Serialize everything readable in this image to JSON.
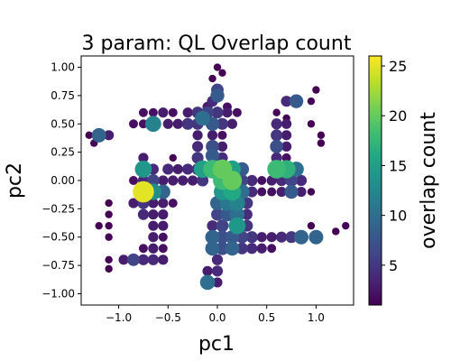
{
  "chart_data": {
    "type": "scatter",
    "title": "3 param: QL Overlap count",
    "xlabel": "pc1",
    "ylabel": "pc2",
    "xlim": [
      -1.38,
      1.38
    ],
    "ylim": [
      -1.1,
      1.1
    ],
    "xticks": [
      -1.0,
      -0.5,
      0.0,
      0.5,
      1.0
    ],
    "xtick_labels": [
      "−1.0",
      "−0.5",
      "0.0",
      "0.5",
      "1.0"
    ],
    "yticks": [
      -1.0,
      -0.75,
      -0.5,
      -0.25,
      0.0,
      0.25,
      0.5,
      0.75,
      1.0
    ],
    "ytick_labels": [
      "−1.00",
      "−0.75",
      "−0.50",
      "−0.25",
      "0.00",
      "0.25",
      "0.50",
      "0.75",
      "1.00"
    ],
    "grid": false,
    "colormap": "viridis",
    "colorbar": {
      "label": "overlap count",
      "min": 1,
      "max": 26,
      "ticks": [
        5,
        10,
        15,
        20,
        25
      ],
      "tick_labels": [
        "5",
        "10",
        "15",
        "20",
        "25"
      ]
    },
    "points": [
      {
        "x": 0.0,
        "y": 1.0,
        "c": 1
      },
      {
        "x": 0.05,
        "y": 0.95,
        "c": 1
      },
      {
        "x": -0.05,
        "y": 0.9,
        "c": 1
      },
      {
        "x": 0.0,
        "y": 0.8,
        "c": 6
      },
      {
        "x": -0.05,
        "y": 0.7,
        "c": 4
      },
      {
        "x": 0.0,
        "y": 0.75,
        "c": 8
      },
      {
        "x": -0.1,
        "y": 0.65,
        "c": 3
      },
      {
        "x": 0.1,
        "y": 0.65,
        "c": 2
      },
      {
        "x": -0.75,
        "y": 0.6,
        "c": 2
      },
      {
        "x": -0.65,
        "y": 0.6,
        "c": 2
      },
      {
        "x": -0.55,
        "y": 0.6,
        "c": 3
      },
      {
        "x": -0.45,
        "y": 0.6,
        "c": 2
      },
      {
        "x": -0.3,
        "y": 0.6,
        "c": 3
      },
      {
        "x": -0.2,
        "y": 0.6,
        "c": 5
      },
      {
        "x": -0.1,
        "y": 0.6,
        "c": 6
      },
      {
        "x": 0.0,
        "y": 0.6,
        "c": 5
      },
      {
        "x": 0.1,
        "y": 0.6,
        "c": 3
      },
      {
        "x": 0.2,
        "y": 0.6,
        "c": 2
      },
      {
        "x": 1.0,
        "y": 0.8,
        "c": 1
      },
      {
        "x": 0.95,
        "y": 0.7,
        "c": 1
      },
      {
        "x": 0.8,
        "y": 0.7,
        "c": 8
      },
      {
        "x": 0.7,
        "y": 0.7,
        "c": 4
      },
      {
        "x": 0.6,
        "y": 0.6,
        "c": 1
      },
      {
        "x": 0.7,
        "y": 0.55,
        "c": 1
      },
      {
        "x": -0.85,
        "y": 0.5,
        "c": 2
      },
      {
        "x": -0.75,
        "y": 0.5,
        "c": 2
      },
      {
        "x": -0.65,
        "y": 0.5,
        "c": 12
      },
      {
        "x": -0.5,
        "y": 0.5,
        "c": 3
      },
      {
        "x": -0.4,
        "y": 0.5,
        "c": 3
      },
      {
        "x": -0.3,
        "y": 0.5,
        "c": 5
      },
      {
        "x": -0.2,
        "y": 0.5,
        "c": 5
      },
      {
        "x": -0.15,
        "y": 0.55,
        "c": 10
      },
      {
        "x": -0.05,
        "y": 0.5,
        "c": 8
      },
      {
        "x": 0.05,
        "y": 0.5,
        "c": 5
      },
      {
        "x": 0.15,
        "y": 0.5,
        "c": 3
      },
      {
        "x": 0.6,
        "y": 0.5,
        "c": 4
      },
      {
        "x": 0.7,
        "y": 0.5,
        "c": 3
      },
      {
        "x": 0.95,
        "y": 0.5,
        "c": 1
      },
      {
        "x": -1.3,
        "y": 0.4,
        "c": 1
      },
      {
        "x": -1.2,
        "y": 0.4,
        "c": 9
      },
      {
        "x": -1.1,
        "y": 0.4,
        "c": 3
      },
      {
        "x": -0.2,
        "y": 0.4,
        "c": 3
      },
      {
        "x": -0.05,
        "y": 0.4,
        "c": 3
      },
      {
        "x": 0.05,
        "y": 0.4,
        "c": 2
      },
      {
        "x": 0.6,
        "y": 0.4,
        "c": 5
      },
      {
        "x": 0.7,
        "y": 0.4,
        "c": 3
      },
      {
        "x": 1.05,
        "y": 0.4,
        "c": 1
      },
      {
        "x": -1.25,
        "y": 0.33,
        "c": 1
      },
      {
        "x": -0.2,
        "y": 0.3,
        "c": 4
      },
      {
        "x": -0.05,
        "y": 0.3,
        "c": 7
      },
      {
        "x": 0.05,
        "y": 0.3,
        "c": 3
      },
      {
        "x": 0.6,
        "y": 0.3,
        "c": 7
      },
      {
        "x": 0.7,
        "y": 0.3,
        "c": 3
      },
      {
        "x": 1.05,
        "y": 0.33,
        "c": 1
      },
      {
        "x": -0.2,
        "y": 0.2,
        "c": 5
      },
      {
        "x": -0.05,
        "y": 0.22,
        "c": 8
      },
      {
        "x": 0.05,
        "y": 0.2,
        "c": 4
      },
      {
        "x": -0.75,
        "y": 0.2,
        "c": 3
      },
      {
        "x": -0.45,
        "y": 0.2,
        "c": 1
      },
      {
        "x": 0.6,
        "y": 0.2,
        "c": 4
      },
      {
        "x": 0.7,
        "y": 0.2,
        "c": 2
      },
      {
        "x": -0.75,
        "y": 0.1,
        "c": 14
      },
      {
        "x": -0.65,
        "y": 0.1,
        "c": 4
      },
      {
        "x": -0.5,
        "y": 0.1,
        "c": 4
      },
      {
        "x": -0.4,
        "y": 0.1,
        "c": 3
      },
      {
        "x": -0.3,
        "y": 0.1,
        "c": 4
      },
      {
        "x": -0.2,
        "y": 0.1,
        "c": 5
      },
      {
        "x": -0.15,
        "y": 0.1,
        "c": 15
      },
      {
        "x": -0.05,
        "y": 0.1,
        "c": 18
      },
      {
        "x": 0.05,
        "y": 0.1,
        "c": 20
      },
      {
        "x": 0.15,
        "y": 0.1,
        "c": 15
      },
      {
        "x": 0.25,
        "y": 0.1,
        "c": 8
      },
      {
        "x": 0.6,
        "y": 0.1,
        "c": 18
      },
      {
        "x": 0.7,
        "y": 0.1,
        "c": 17
      },
      {
        "x": 0.8,
        "y": 0.1,
        "c": 10
      },
      {
        "x": -0.85,
        "y": 0.0,
        "c": 2
      },
      {
        "x": -0.75,
        "y": 0.0,
        "c": 4
      },
      {
        "x": -0.65,
        "y": 0.0,
        "c": 6
      },
      {
        "x": -0.55,
        "y": 0.0,
        "c": 3
      },
      {
        "x": -0.45,
        "y": 0.0,
        "c": 3
      },
      {
        "x": -0.35,
        "y": 0.0,
        "c": 3
      },
      {
        "x": -0.25,
        "y": 0.0,
        "c": 3
      },
      {
        "x": -0.15,
        "y": 0.0,
        "c": 5
      },
      {
        "x": 0.05,
        "y": 0.0,
        "c": 18
      },
      {
        "x": 0.15,
        "y": 0.0,
        "c": 20
      },
      {
        "x": 0.25,
        "y": 0.0,
        "c": 6
      },
      {
        "x": 0.35,
        "y": 0.0,
        "c": 4
      },
      {
        "x": 0.45,
        "y": 0.0,
        "c": 2
      },
      {
        "x": 0.55,
        "y": 0.0,
        "c": 3
      },
      {
        "x": 0.65,
        "y": 0.0,
        "c": 4
      },
      {
        "x": 0.75,
        "y": 0.0,
        "c": 6
      },
      {
        "x": 0.85,
        "y": 0.0,
        "c": 4
      },
      {
        "x": -0.75,
        "y": -0.1,
        "c": 25
      },
      {
        "x": -0.65,
        "y": -0.1,
        "c": 13
      },
      {
        "x": -0.55,
        "y": -0.1,
        "c": 9
      },
      {
        "x": 0.05,
        "y": -0.1,
        "c": 14
      },
      {
        "x": 0.15,
        "y": -0.1,
        "c": 16
      },
      {
        "x": 0.25,
        "y": -0.1,
        "c": 10
      },
      {
        "x": 0.35,
        "y": -0.1,
        "c": 4
      },
      {
        "x": 0.45,
        "y": -0.1,
        "c": 2
      },
      {
        "x": 0.55,
        "y": -0.1,
        "c": 2
      },
      {
        "x": 0.65,
        "y": -0.1,
        "c": 3
      },
      {
        "x": 0.75,
        "y": -0.1,
        "c": 8
      },
      {
        "x": 0.85,
        "y": -0.1,
        "c": 3
      },
      {
        "x": 0.95,
        "y": -0.1,
        "c": 1
      },
      {
        "x": -1.1,
        "y": -0.2,
        "c": 1
      },
      {
        "x": -0.85,
        "y": -0.2,
        "c": 3
      },
      {
        "x": -0.75,
        "y": -0.2,
        "c": 5
      },
      {
        "x": -0.65,
        "y": -0.2,
        "c": 3
      },
      {
        "x": -0.55,
        "y": -0.2,
        "c": 3
      },
      {
        "x": -0.45,
        "y": -0.2,
        "c": 2
      },
      {
        "x": 0.0,
        "y": -0.2,
        "c": 9
      },
      {
        "x": 0.1,
        "y": -0.2,
        "c": 11
      },
      {
        "x": 0.2,
        "y": -0.2,
        "c": 12
      },
      {
        "x": 0.3,
        "y": -0.2,
        "c": 5
      },
      {
        "x": -1.1,
        "y": -0.3,
        "c": 1
      },
      {
        "x": -0.75,
        "y": -0.3,
        "c": 4
      },
      {
        "x": -0.65,
        "y": -0.3,
        "c": 3
      },
      {
        "x": -0.55,
        "y": -0.3,
        "c": 3
      },
      {
        "x": 0.0,
        "y": -0.3,
        "c": 6
      },
      {
        "x": 0.1,
        "y": -0.3,
        "c": 8
      },
      {
        "x": 0.2,
        "y": -0.3,
        "c": 10
      },
      {
        "x": 0.3,
        "y": -0.3,
        "c": 4
      },
      {
        "x": -1.2,
        "y": -0.4,
        "c": 1
      },
      {
        "x": -1.1,
        "y": -0.4,
        "c": 1
      },
      {
        "x": -0.65,
        "y": -0.4,
        "c": 3
      },
      {
        "x": -0.55,
        "y": -0.4,
        "c": 3
      },
      {
        "x": -0.05,
        "y": -0.4,
        "c": 4
      },
      {
        "x": 0.05,
        "y": -0.4,
        "c": 6
      },
      {
        "x": 0.2,
        "y": -0.4,
        "c": 14
      },
      {
        "x": 0.3,
        "y": -0.4,
        "c": 5
      },
      {
        "x": 0.95,
        "y": -0.4,
        "c": 1
      },
      {
        "x": 1.3,
        "y": -0.4,
        "c": 1
      },
      {
        "x": -0.05,
        "y": -0.5,
        "c": 9
      },
      {
        "x": 0.05,
        "y": -0.5,
        "c": 7
      },
      {
        "x": 0.15,
        "y": -0.5,
        "c": 8
      },
      {
        "x": 0.25,
        "y": -0.5,
        "c": 6
      },
      {
        "x": 0.35,
        "y": -0.5,
        "c": 5
      },
      {
        "x": 0.45,
        "y": -0.5,
        "c": 3
      },
      {
        "x": 0.55,
        "y": -0.5,
        "c": 3
      },
      {
        "x": 0.65,
        "y": -0.5,
        "c": 4
      },
      {
        "x": 0.75,
        "y": -0.5,
        "c": 5
      },
      {
        "x": 0.85,
        "y": -0.5,
        "c": 9
      },
      {
        "x": 1.0,
        "y": -0.5,
        "c": 9
      },
      {
        "x": -1.1,
        "y": -0.5,
        "c": 1
      },
      {
        "x": -0.65,
        "y": -0.5,
        "c": 3
      },
      {
        "x": -0.55,
        "y": -0.5,
        "c": 2
      },
      {
        "x": 1.2,
        "y": -0.45,
        "c": 1
      },
      {
        "x": -0.05,
        "y": -0.6,
        "c": 9
      },
      {
        "x": 0.05,
        "y": -0.6,
        "c": 7
      },
      {
        "x": 0.15,
        "y": -0.6,
        "c": 9
      },
      {
        "x": 0.25,
        "y": -0.6,
        "c": 5
      },
      {
        "x": 0.35,
        "y": -0.6,
        "c": 4
      },
      {
        "x": 0.45,
        "y": -0.6,
        "c": 3
      },
      {
        "x": 0.55,
        "y": -0.6,
        "c": 2
      },
      {
        "x": -0.75,
        "y": -0.6,
        "c": 2
      },
      {
        "x": -0.65,
        "y": -0.6,
        "c": 3
      },
      {
        "x": -0.55,
        "y": -0.6,
        "c": 2
      },
      {
        "x": -1.1,
        "y": -0.7,
        "c": 1
      },
      {
        "x": -0.95,
        "y": -0.7,
        "c": 3
      },
      {
        "x": -0.85,
        "y": -0.7,
        "c": 6
      },
      {
        "x": -0.75,
        "y": -0.7,
        "c": 4
      },
      {
        "x": -0.65,
        "y": -0.7,
        "c": 4
      },
      {
        "x": -0.55,
        "y": -0.7,
        "c": 3
      },
      {
        "x": 0.0,
        "y": -0.7,
        "c": 4
      },
      {
        "x": -1.1,
        "y": -0.78,
        "c": 1
      },
      {
        "x": -0.1,
        "y": -0.8,
        "c": 3
      },
      {
        "x": 0.0,
        "y": -0.8,
        "c": 4
      },
      {
        "x": -0.1,
        "y": -0.9,
        "c": 10
      },
      {
        "x": 0.0,
        "y": -0.9,
        "c": 3
      }
    ]
  }
}
